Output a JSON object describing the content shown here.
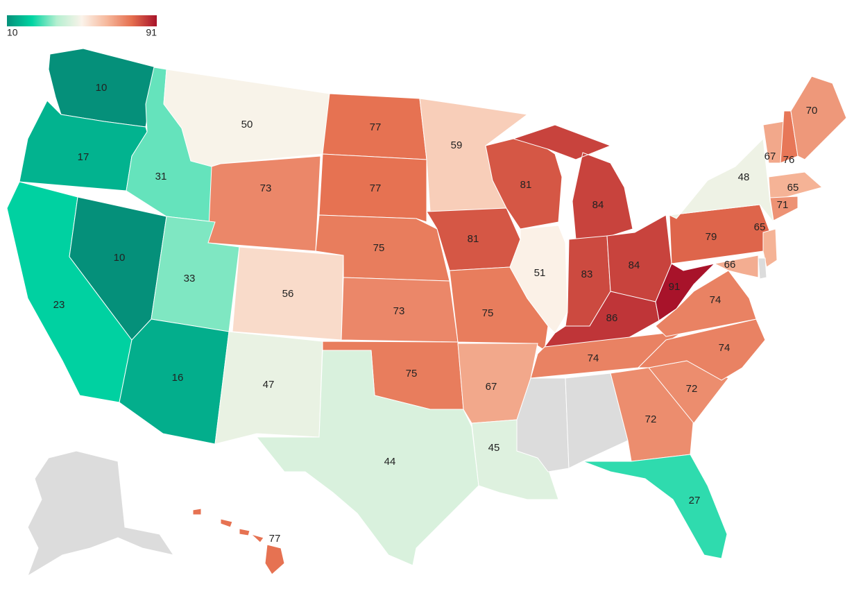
{
  "chart_data": {
    "type": "choropleth",
    "values": [
      10,
      17,
      23,
      10,
      31,
      50,
      73,
      33,
      16,
      56,
      47,
      77,
      77,
      75,
      73,
      75,
      44,
      59,
      81,
      75,
      67,
      45,
      81,
      51,
      84,
      83,
      84,
      86,
      74,
      null,
      null,
      72,
      27,
      72,
      74,
      74,
      91,
      79,
      48,
      65,
      66,
      null,
      67,
      76,
      70,
      65,
      71,
      77,
      null
    ],
    "colorbar": {
      "min": 10,
      "max": 91
    },
    "colors": [
      "#05907a",
      "#00d4a2",
      "#b5efd0",
      "#fbf3ea",
      "#f6b89c",
      "#e56f4f",
      "#a8132a"
    ],
    "null_color": "#dcdcdc"
  }
}
